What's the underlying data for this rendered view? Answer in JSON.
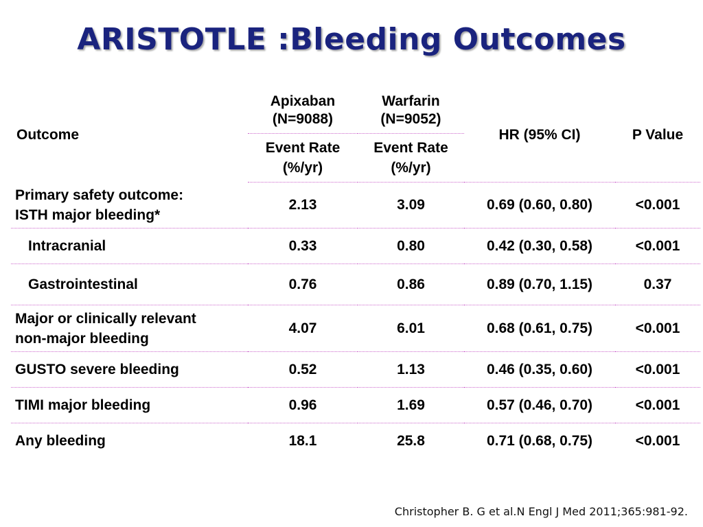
{
  "slide": {
    "title": "ARISTOTLE :Bleeding Outcomes",
    "citation": "Christopher B. G et al.N Engl J Med 2011;365:981-92."
  },
  "table": {
    "headers": {
      "outcome": "Outcome",
      "apixaban_line1": "Apixaban",
      "apixaban_line2": "(N=9088)",
      "warfarin_line1": "Warfarin",
      "warfarin_line2": "(N=9052)",
      "event_rate_line1": "Event Rate",
      "event_rate_line2": "(%/yr)",
      "hr": "HR (95% CI)",
      "p_value": "P Value"
    },
    "rows": [
      {
        "outcome_line1": "Primary safety outcome:",
        "outcome_line2": "ISTH major bleeding*",
        "apixaban": "2.13",
        "warfarin": "3.09",
        "hr": "0.69 (0.60, 0.80)",
        "p": "<0.001"
      },
      {
        "outcome_line1": "Intracranial",
        "outcome_line2": "",
        "apixaban": "0.33",
        "warfarin": "0.80",
        "hr": "0.42 (0.30, 0.58)",
        "p": "<0.001"
      },
      {
        "outcome_line1": "Gastrointestinal",
        "outcome_line2": "",
        "apixaban": "0.76",
        "warfarin": "0.86",
        "hr": "0.89 (0.70, 1.15)",
        "p": "0.37"
      },
      {
        "outcome_line1": "Major or clinically relevant",
        "outcome_line2": "non-major bleeding",
        "apixaban": "4.07",
        "warfarin": "6.01",
        "hr": "0.68 (0.61, 0.75)",
        "p": "<0.001"
      },
      {
        "outcome_line1": "GUSTO severe bleeding",
        "outcome_line2": "",
        "apixaban": "0.52",
        "warfarin": "1.13",
        "hr": "0.46 (0.35, 0.60)",
        "p": "<0.001"
      },
      {
        "outcome_line1": "TIMI major bleeding",
        "outcome_line2": "",
        "apixaban": "0.96",
        "warfarin": "1.69",
        "hr": "0.57 (0.46, 0.70)",
        "p": "<0.001"
      },
      {
        "outcome_line1": "Any bleeding",
        "outcome_line2": "",
        "apixaban": "18.1",
        "warfarin": "25.8",
        "hr": "0.71 (0.68, 0.75)",
        "p": "<0.001"
      }
    ]
  },
  "colors": {
    "title": "#1a237e",
    "row_divider": "#cc66cc"
  }
}
